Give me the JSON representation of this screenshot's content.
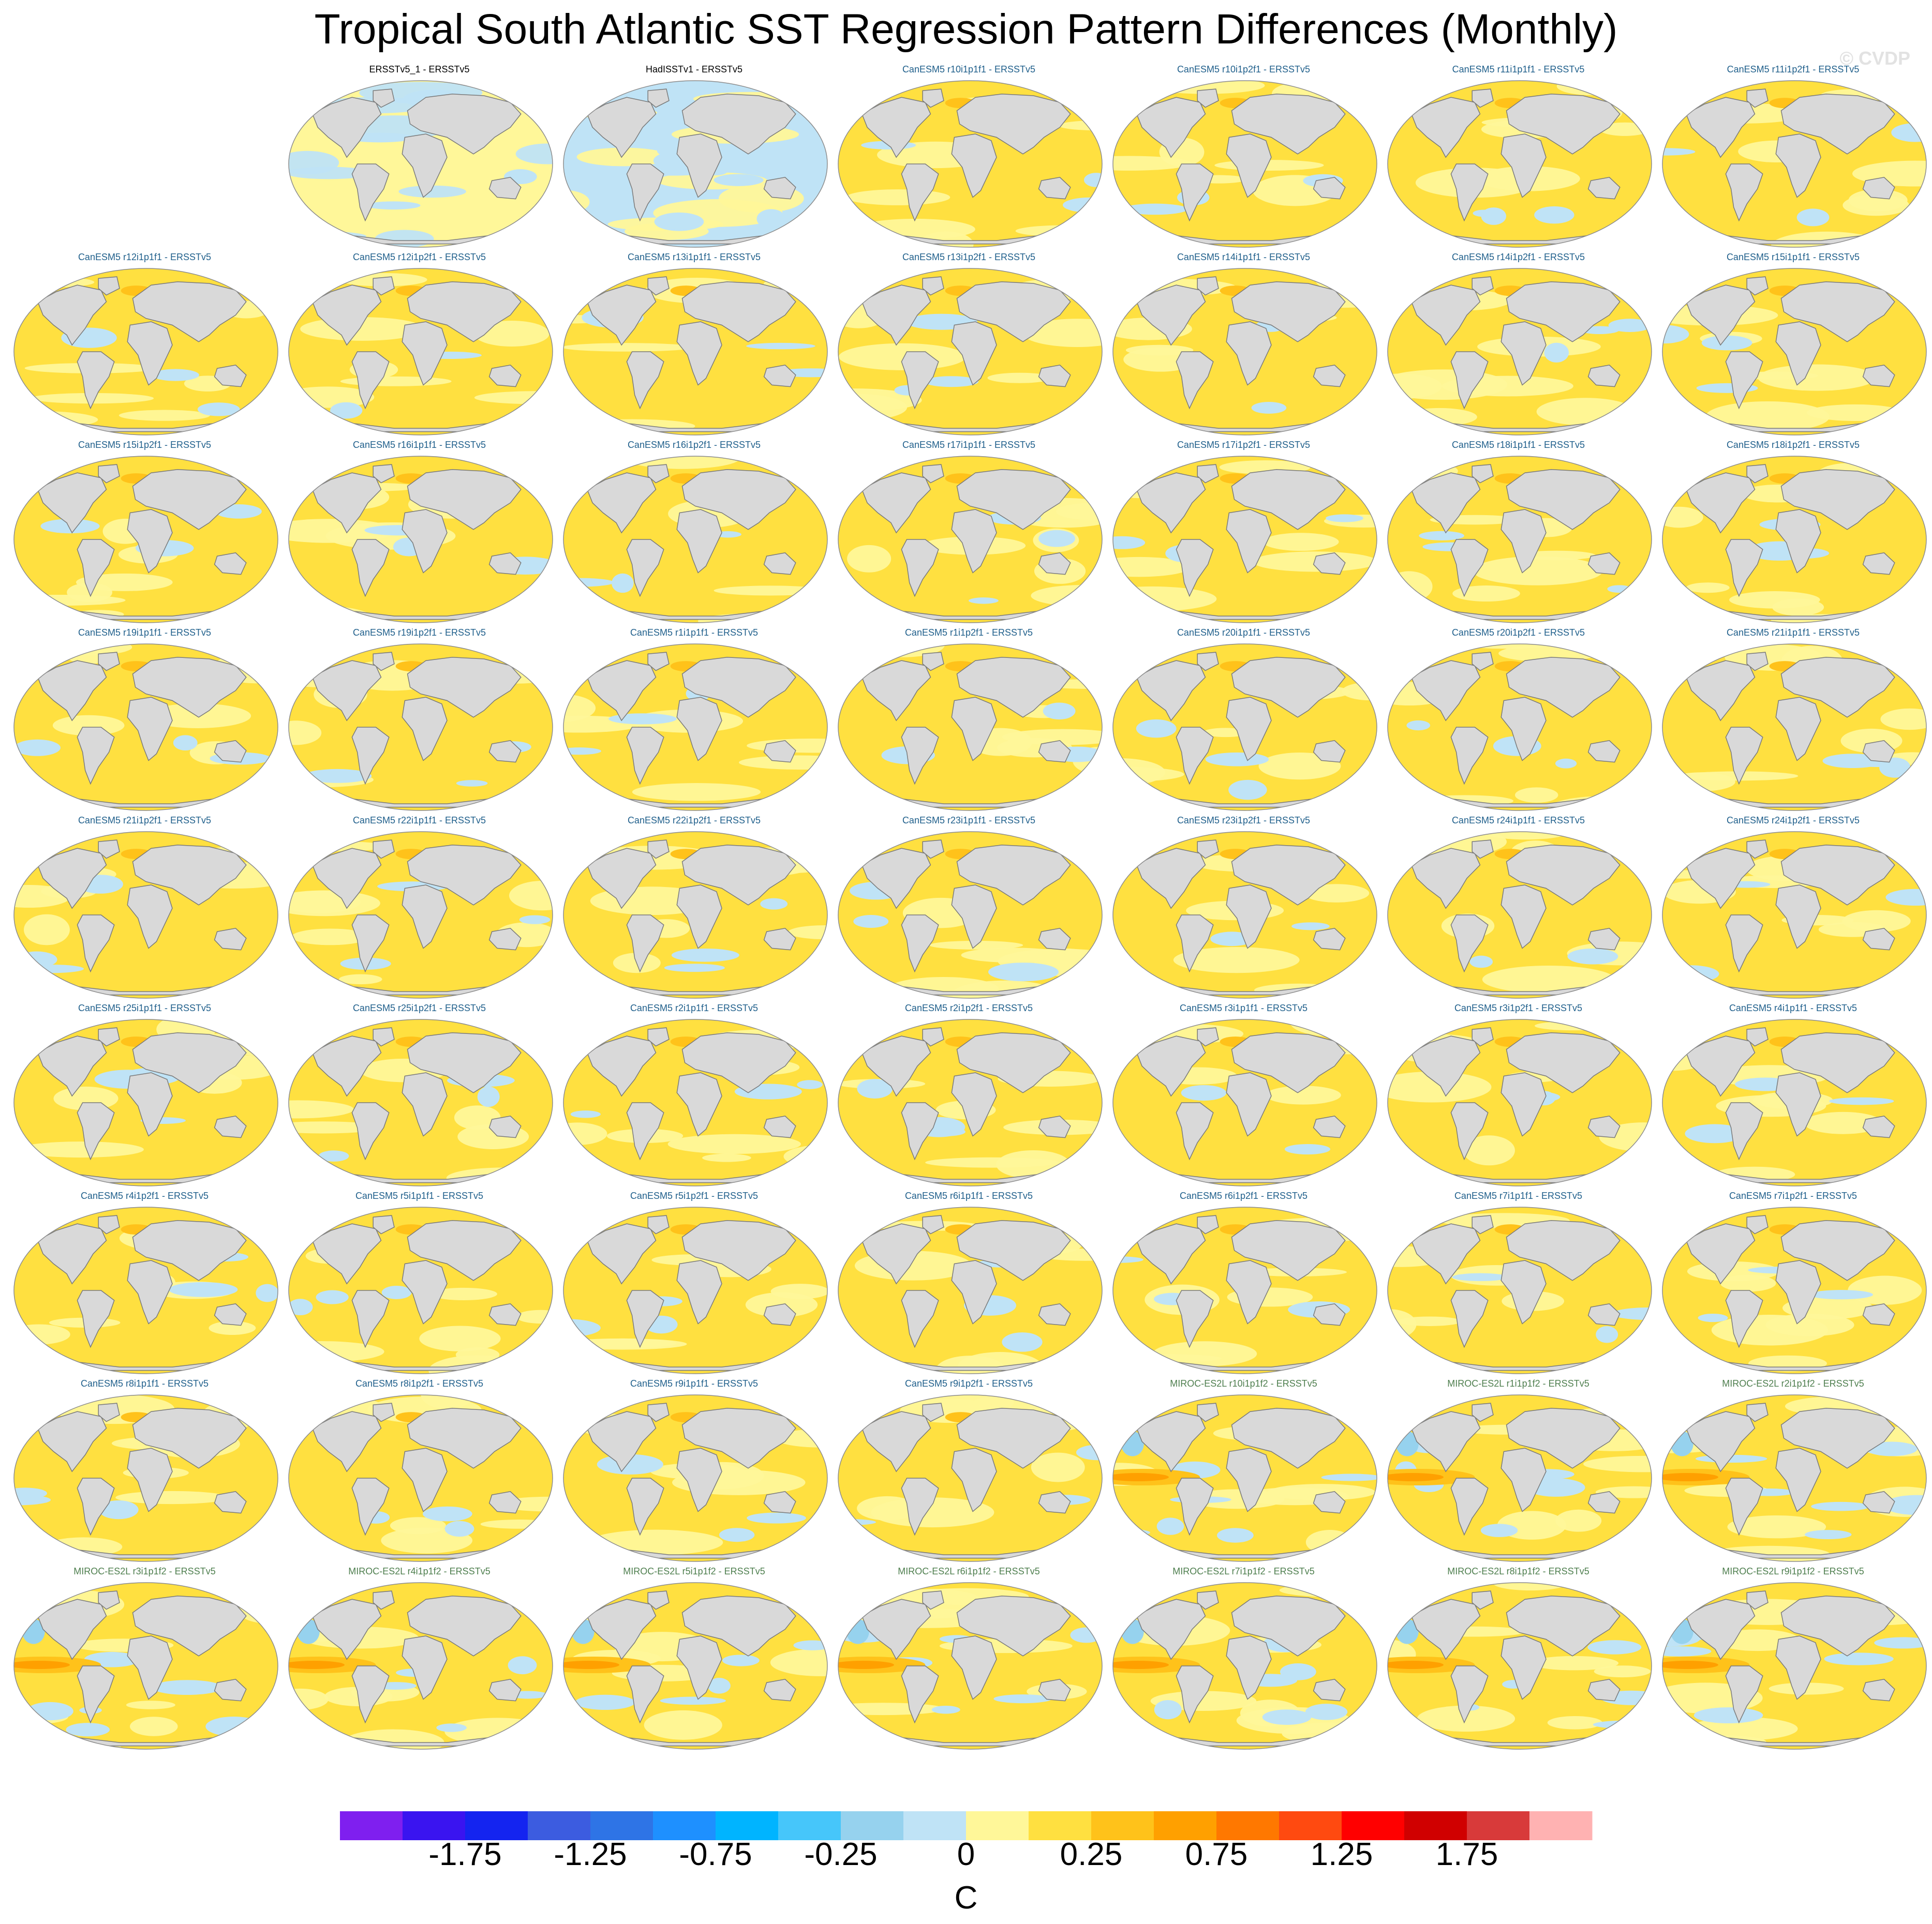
{
  "title": "Tropical South Atlantic SST Regression Pattern Differences (Monthly)",
  "copyright": "© CVDP",
  "units": "C",
  "colors": {
    "land": "#d9d9d9",
    "coast": "#7a7a7a",
    "title_obs": "#000000",
    "title_canesm": "#1f5f8b",
    "title_miroc": "#4f7f4f"
  },
  "icons": [
    "map-projection-globe"
  ],
  "chart_data": {
    "type": "heatmap",
    "projection": "Robinson (global map panels)",
    "colorbar": {
      "levels": [
        -2.0,
        -1.75,
        -1.5,
        -1.25,
        -1.0,
        -0.75,
        -0.5,
        -0.25,
        -0.1,
        0,
        0.1,
        0.25,
        0.5,
        0.75,
        1.0,
        1.25,
        1.5,
        1.75,
        2.0
      ],
      "tick_labels": [
        "-1.75",
        "-1.25",
        "-0.75",
        "-0.25",
        "0",
        "0.25",
        "0.75",
        "1.25",
        "1.75"
      ],
      "tick_positions": [
        -1.75,
        -1.25,
        -0.75,
        -0.25,
        0,
        0.25,
        0.75,
        1.25,
        1.75
      ],
      "colors": [
        "#7f1fef",
        "#3a14f0",
        "#1424f0",
        "#3c5ce0",
        "#2e74e6",
        "#1e90ff",
        "#00b4ff",
        "#46c6fa",
        "#96d2ee",
        "#bfe3f6",
        "#fff799",
        "#ffe040",
        "#ffc21a",
        "#ffa000",
        "#ff7800",
        "#ff4a10",
        "#ff0000",
        "#d00000",
        "#d83a3a",
        "#ffb2b2"
      ]
    },
    "panels": [
      {
        "label": "ERSSTv5_1 - ERSSTv5",
        "group": "obs",
        "mean_level": "weak"
      },
      {
        "label": "HadISSTv1 - ERSSTv5",
        "group": "obs",
        "mean_level": "weak-neg"
      },
      {
        "label": "CanESM5 r10i1p1f1 - ERSSTv5",
        "group": "canesm",
        "mean_level": "pos"
      },
      {
        "label": "CanESM5 r10i1p2f1 - ERSSTv5",
        "group": "canesm",
        "mean_level": "pos"
      },
      {
        "label": "CanESM5 r11i1p1f1 - ERSSTv5",
        "group": "canesm",
        "mean_level": "pos"
      },
      {
        "label": "CanESM5 r11i1p2f1 - ERSSTv5",
        "group": "canesm",
        "mean_level": "pos"
      },
      {
        "label": "CanESM5 r12i1p1f1 - ERSSTv5",
        "group": "canesm",
        "mean_level": "pos"
      },
      {
        "label": "CanESM5 r12i1p2f1 - ERSSTv5",
        "group": "canesm",
        "mean_level": "pos"
      },
      {
        "label": "CanESM5 r13i1p1f1 - ERSSTv5",
        "group": "canesm",
        "mean_level": "pos"
      },
      {
        "label": "CanESM5 r13i1p2f1 - ERSSTv5",
        "group": "canesm",
        "mean_level": "pos"
      },
      {
        "label": "CanESM5 r14i1p1f1 - ERSSTv5",
        "group": "canesm",
        "mean_level": "pos"
      },
      {
        "label": "CanESM5 r14i1p2f1 - ERSSTv5",
        "group": "canesm",
        "mean_level": "pos"
      },
      {
        "label": "CanESM5 r15i1p1f1 - ERSSTv5",
        "group": "canesm",
        "mean_level": "pos"
      },
      {
        "label": "CanESM5 r15i1p2f1 - ERSSTv5",
        "group": "canesm",
        "mean_level": "pos"
      },
      {
        "label": "CanESM5 r16i1p1f1 - ERSSTv5",
        "group": "canesm",
        "mean_level": "pos"
      },
      {
        "label": "CanESM5 r16i1p2f1 - ERSSTv5",
        "group": "canesm",
        "mean_level": "pos"
      },
      {
        "label": "CanESM5 r17i1p1f1 - ERSSTv5",
        "group": "canesm",
        "mean_level": "pos"
      },
      {
        "label": "CanESM5 r17i1p2f1 - ERSSTv5",
        "group": "canesm",
        "mean_level": "pos"
      },
      {
        "label": "CanESM5 r18i1p1f1 - ERSSTv5",
        "group": "canesm",
        "mean_level": "pos"
      },
      {
        "label": "CanESM5 r18i1p2f1 - ERSSTv5",
        "group": "canesm",
        "mean_level": "pos"
      },
      {
        "label": "CanESM5 r19i1p1f1 - ERSSTv5",
        "group": "canesm",
        "mean_level": "pos"
      },
      {
        "label": "CanESM5 r19i1p2f1 - ERSSTv5",
        "group": "canesm",
        "mean_level": "pos"
      },
      {
        "label": "CanESM5 r1i1p1f1 - ERSSTv5",
        "group": "canesm",
        "mean_level": "pos"
      },
      {
        "label": "CanESM5 r1i1p2f1 - ERSSTv5",
        "group": "canesm",
        "mean_level": "pos"
      },
      {
        "label": "CanESM5 r20i1p1f1 - ERSSTv5",
        "group": "canesm",
        "mean_level": "pos"
      },
      {
        "label": "CanESM5 r20i1p2f1 - ERSSTv5",
        "group": "canesm",
        "mean_level": "pos"
      },
      {
        "label": "CanESM5 r21i1p1f1 - ERSSTv5",
        "group": "canesm",
        "mean_level": "pos"
      },
      {
        "label": "CanESM5 r21i1p2f1 - ERSSTv5",
        "group": "canesm",
        "mean_level": "pos"
      },
      {
        "label": "CanESM5 r22i1p1f1 - ERSSTv5",
        "group": "canesm",
        "mean_level": "pos"
      },
      {
        "label": "CanESM5 r22i1p2f1 - ERSSTv5",
        "group": "canesm",
        "mean_level": "pos"
      },
      {
        "label": "CanESM5 r23i1p1f1 - ERSSTv5",
        "group": "canesm",
        "mean_level": "pos"
      },
      {
        "label": "CanESM5 r23i1p2f1 - ERSSTv5",
        "group": "canesm",
        "mean_level": "pos"
      },
      {
        "label": "CanESM5 r24i1p1f1 - ERSSTv5",
        "group": "canesm",
        "mean_level": "pos"
      },
      {
        "label": "CanESM5 r24i1p2f1 - ERSSTv5",
        "group": "canesm",
        "mean_level": "pos"
      },
      {
        "label": "CanESM5 r25i1p1f1 - ERSSTv5",
        "group": "canesm",
        "mean_level": "pos"
      },
      {
        "label": "CanESM5 r25i1p2f1 - ERSSTv5",
        "group": "canesm",
        "mean_level": "pos"
      },
      {
        "label": "CanESM5 r2i1p1f1 - ERSSTv5",
        "group": "canesm",
        "mean_level": "pos"
      },
      {
        "label": "CanESM5 r2i1p2f1 - ERSSTv5",
        "group": "canesm",
        "mean_level": "pos"
      },
      {
        "label": "CanESM5 r3i1p1f1 - ERSSTv5",
        "group": "canesm",
        "mean_level": "pos"
      },
      {
        "label": "CanESM5 r3i1p2f1 - ERSSTv5",
        "group": "canesm",
        "mean_level": "pos"
      },
      {
        "label": "CanESM5 r4i1p1f1 - ERSSTv5",
        "group": "canesm",
        "mean_level": "pos"
      },
      {
        "label": "CanESM5 r4i1p2f1 - ERSSTv5",
        "group": "canesm",
        "mean_level": "pos"
      },
      {
        "label": "CanESM5 r5i1p1f1 - ERSSTv5",
        "group": "canesm",
        "mean_level": "pos"
      },
      {
        "label": "CanESM5 r5i1p2f1 - ERSSTv5",
        "group": "canesm",
        "mean_level": "pos"
      },
      {
        "label": "CanESM5 r6i1p1f1 - ERSSTv5",
        "group": "canesm",
        "mean_level": "pos"
      },
      {
        "label": "CanESM5 r6i1p2f1 - ERSSTv5",
        "group": "canesm",
        "mean_level": "pos"
      },
      {
        "label": "CanESM5 r7i1p1f1 - ERSSTv5",
        "group": "canesm",
        "mean_level": "pos"
      },
      {
        "label": "CanESM5 r7i1p2f1 - ERSSTv5",
        "group": "canesm",
        "mean_level": "pos"
      },
      {
        "label": "CanESM5 r8i1p1f1 - ERSSTv5",
        "group": "canesm",
        "mean_level": "pos"
      },
      {
        "label": "CanESM5 r8i1p2f1 - ERSSTv5",
        "group": "canesm",
        "mean_level": "pos"
      },
      {
        "label": "CanESM5 r9i1p1f1 - ERSSTv5",
        "group": "canesm",
        "mean_level": "pos"
      },
      {
        "label": "CanESM5 r9i1p2f1 - ERSSTv5",
        "group": "canesm",
        "mean_level": "pos"
      },
      {
        "label": "MIROC-ES2L r10i1p1f2 - ERSSTv5",
        "group": "miroc",
        "mean_level": "pos-enso"
      },
      {
        "label": "MIROC-ES2L r1i1p1f2 - ERSSTv5",
        "group": "miroc",
        "mean_level": "pos-enso"
      },
      {
        "label": "MIROC-ES2L r2i1p1f2 - ERSSTv5",
        "group": "miroc",
        "mean_level": "pos-enso"
      },
      {
        "label": "MIROC-ES2L r3i1p1f2 - ERSSTv5",
        "group": "miroc",
        "mean_level": "pos-enso"
      },
      {
        "label": "MIROC-ES2L r4i1p1f2 - ERSSTv5",
        "group": "miroc",
        "mean_level": "pos-enso"
      },
      {
        "label": "MIROC-ES2L r5i1p1f2 - ERSSTv5",
        "group": "miroc",
        "mean_level": "pos-enso"
      },
      {
        "label": "MIROC-ES2L r6i1p1f2 - ERSSTv5",
        "group": "miroc",
        "mean_level": "pos-enso"
      },
      {
        "label": "MIROC-ES2L r7i1p1f2 - ERSSTv5",
        "group": "miroc",
        "mean_level": "pos-enso"
      },
      {
        "label": "MIROC-ES2L r8i1p1f2 - ERSSTv5",
        "group": "miroc",
        "mean_level": "pos-enso"
      },
      {
        "label": "MIROC-ES2L r9i1p1f2 - ERSSTv5",
        "group": "miroc",
        "mean_level": "pos-enso"
      }
    ]
  }
}
